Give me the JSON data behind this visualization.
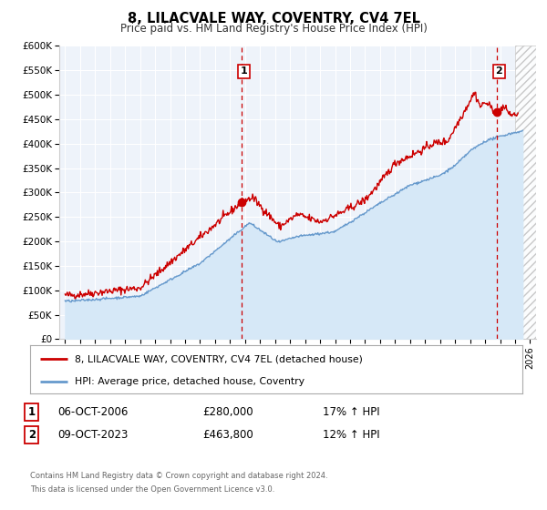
{
  "title": "8, LILACVALE WAY, COVENTRY, CV4 7EL",
  "subtitle": "Price paid vs. HM Land Registry's House Price Index (HPI)",
  "ylim": [
    0,
    600000
  ],
  "yticks": [
    0,
    50000,
    100000,
    150000,
    200000,
    250000,
    300000,
    350000,
    400000,
    450000,
    500000,
    550000,
    600000
  ],
  "ytick_labels": [
    "£0",
    "£50K",
    "£100K",
    "£150K",
    "£200K",
    "£250K",
    "£300K",
    "£350K",
    "£400K",
    "£450K",
    "£500K",
    "£550K",
    "£600K"
  ],
  "xlim_start": 1994.6,
  "xlim_end": 2026.4,
  "xticks": [
    1995,
    1996,
    1997,
    1998,
    1999,
    2000,
    2001,
    2002,
    2003,
    2004,
    2005,
    2006,
    2007,
    2008,
    2009,
    2010,
    2011,
    2012,
    2013,
    2014,
    2015,
    2016,
    2017,
    2018,
    2019,
    2020,
    2021,
    2022,
    2023,
    2024,
    2025,
    2026
  ],
  "red_line_color": "#cc0000",
  "blue_line_color": "#6699cc",
  "blue_fill_color": "#d6e8f7",
  "marker1_x": 2006.77,
  "marker1_y": 280000,
  "marker2_x": 2023.77,
  "marker2_y": 463800,
  "vline1_x": 2006.77,
  "vline2_x": 2023.77,
  "vline_color": "#cc0000",
  "hatch_start": 2025.0,
  "legend_label_red": "8, LILACVALE WAY, COVENTRY, CV4 7EL (detached house)",
  "legend_label_blue": "HPI: Average price, detached house, Coventry",
  "annotation1_label": "1",
  "annotation2_label": "2",
  "note1_num": "1",
  "note1_date": "06-OCT-2006",
  "note1_price": "£280,000",
  "note1_hpi": "17% ↑ HPI",
  "note2_num": "2",
  "note2_date": "09-OCT-2023",
  "note2_price": "£463,800",
  "note2_hpi": "12% ↑ HPI",
  "footer1": "Contains HM Land Registry data © Crown copyright and database right 2024.",
  "footer2": "This data is licensed under the Open Government Licence v3.0.",
  "background_color": "#ffffff",
  "plot_bg_color": "#eef3fa"
}
